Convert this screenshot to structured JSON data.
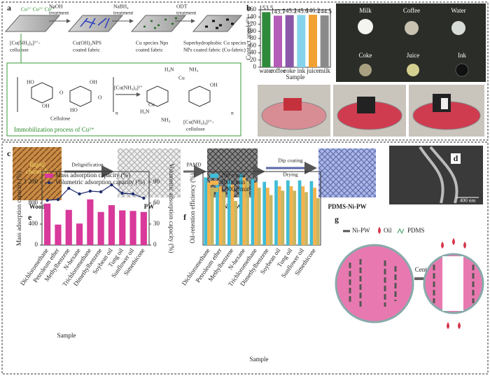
{
  "panels": {
    "a": {
      "letter": "a",
      "ions": "Cu²⁺ Cu²⁺ Cu²⁺",
      "steps": [
        [
          "NaOH",
          "treatment"
        ],
        [
          "NaBH₄",
          "treatment"
        ],
        [
          "ODT",
          "treatment"
        ]
      ],
      "labels": [
        [
          "[Cu(NH₃)₄]²⁺-",
          "cellulose"
        ],
        [
          "Cu(OH)₂NPS",
          "coated fabric"
        ],
        [
          "Cu species Nps",
          "coated fabric"
        ],
        [
          "Superhydrophobic Cu species",
          "NPs coated fabric (Cu-fabric)"
        ]
      ],
      "cellulose": "Cellulose",
      "reagent": "[Cu(NH₃)₄]²⁺",
      "product": [
        "[Cu(NH₃)₄]²⁺-",
        "cellulose"
      ],
      "atoms": [
        "HO",
        "OH",
        "O",
        "HO",
        "OH",
        "O",
        "n",
        "H₃N",
        "NH₃",
        "Cu",
        "H₃N",
        "NH₃",
        "Cu",
        "OH",
        "n"
      ],
      "caption": "Immobilization process of Cu²⁺"
    },
    "b": {
      "letter": "b",
      "drops": [
        "Milk",
        "Coffee",
        "Water",
        "Coke",
        "Juice",
        "Ink"
      ]
    },
    "c": {
      "letter": "c",
      "channels": [
        "Rapid",
        "channels"
      ],
      "steps": [
        "Delignification",
        "PAMD",
        "Dip coating",
        "Drying"
      ],
      "materials": [
        "Wood",
        "PW",
        "Ni-PW",
        "PDMS-Ni-PW"
      ]
    },
    "d": {
      "letter": "d",
      "scale": "400 nm"
    },
    "e": {
      "letter": "e"
    },
    "f": {
      "letter": "f"
    },
    "g": {
      "letter": "g",
      "legend": [
        "Ni-PW",
        "Oil",
        "PDMS"
      ],
      "step": "Centrifuge"
    }
  },
  "chart_data": [
    {
      "type": "bar",
      "ylabel": "Contact angel (°)",
      "xlabel": "Sample",
      "categories": [
        "water",
        "coffee",
        "coke",
        "ink",
        "juice",
        "milk"
      ],
      "values": [
        153.5,
        143.7,
        145.2,
        145.6,
        146.2,
        144.5
      ],
      "colors": [
        "#2f8a3c",
        "#b45cb8",
        "#8b57a8",
        "#86d3ec",
        "#f2a133",
        "#8a8a8a"
      ],
      "ylim": [
        0,
        160
      ],
      "yticks": [
        0,
        20,
        40,
        60,
        80,
        100,
        120,
        140,
        160
      ]
    },
    {
      "type": "combo",
      "xlabel": "Sample",
      "ylabel": "Mass adsorption capacity (%)",
      "y2label": "Volumetric adsorption capacity (%)",
      "categories": [
        "Dichloromethane",
        "Petroleum ether",
        "Methylbenzene",
        "N-hexane",
        "Trichloromethane",
        "Dimethylbenzene",
        "Soybean oil",
        "Tung oil",
        "Sunflower oil",
        "Simethicone"
      ],
      "series": [
        {
          "name": "Mass adsorption capacity (%)",
          "color": "#d8399a",
          "type": "bar",
          "values": [
            790,
            390,
            670,
            410,
            870,
            630,
            760,
            660,
            650,
            630
          ]
        },
        {
          "name": "Volumetric adsorption capacity (%)",
          "color": "#1d2b6e",
          "type": "line",
          "axis": "y2",
          "values": [
            64,
            65,
            81,
            73,
            77,
            76,
            86,
            74,
            73,
            67
          ]
        }
      ],
      "ylim": [
        0,
        1400
      ],
      "yticks": [
        0,
        400,
        800,
        {
          "value": 1200,
          "label": "1 200"
        }
      ],
      "y2lim": [
        0,
        105
      ],
      "y2ticks": [
        0,
        30,
        60,
        90
      ]
    },
    {
      "type": "bar",
      "xlabel": "Sample",
      "ylabel": "Oil-retention efficiency (%)",
      "categories": [
        "Dichloromethane",
        "Petroleum ether",
        "Methylbenzene",
        "N-hexane",
        "Trichloromethane",
        "Dimethylbenzene",
        "Soybean oil",
        "Tung oil",
        "Sunflower oil",
        "Simethicone"
      ],
      "series": [
        {
          "name": "200 r/min",
          "color": "#3fbcd6",
          "values": [
            92,
            84,
            88,
            97,
            90,
            86,
            88,
            88,
            88,
            87
          ]
        },
        {
          "name": "500 r/min",
          "color": "#f4b24c",
          "values": [
            85,
            80,
            82,
            92,
            85,
            78,
            80,
            80,
            80,
            78
          ]
        },
        {
          "name": "1 000 r/min",
          "color": "#c8b662",
          "values": [
            78,
            72,
            60,
            87,
            78,
            68,
            74,
            74,
            72,
            64
          ]
        }
      ],
      "ylim": [
        0,
        100
      ]
    }
  ]
}
